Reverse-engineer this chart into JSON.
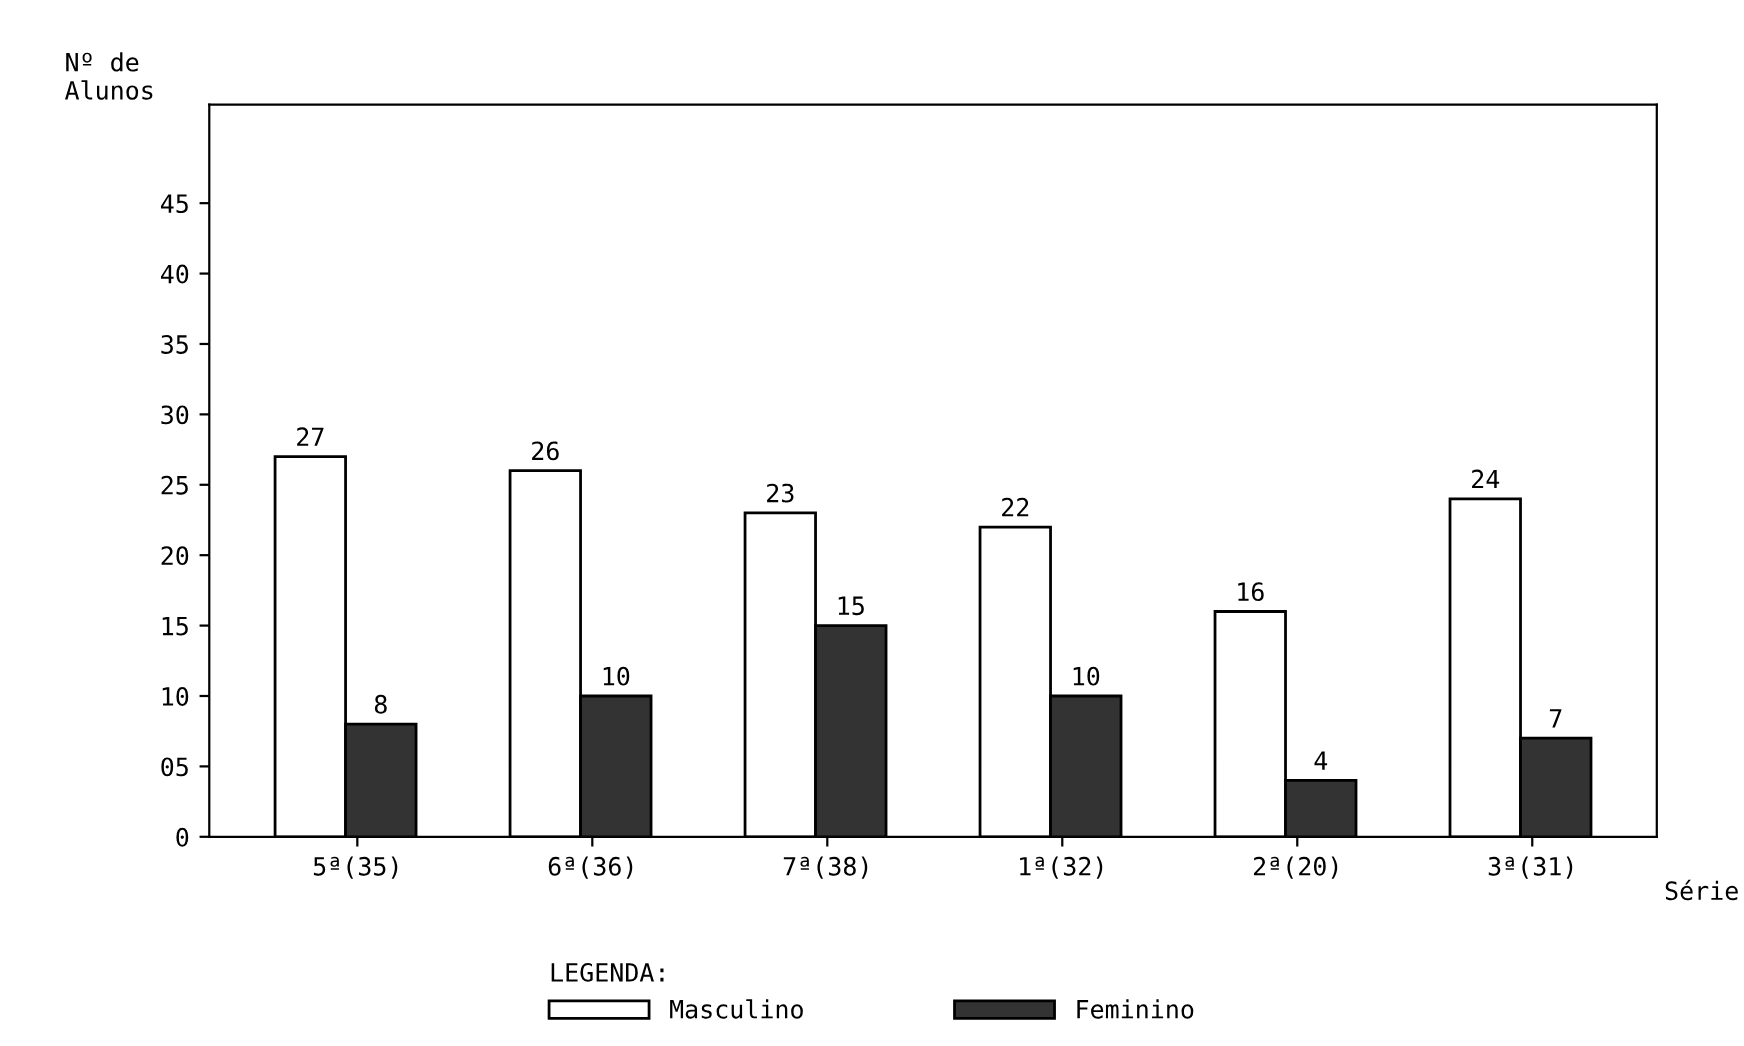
{
  "chart_data": {
    "type": "bar",
    "ylabel": "Nº de\nAlunos",
    "xlabel": "Série",
    "legend_title": "LEGENDA:",
    "categories": [
      "5ª(35)",
      "6ª(36)",
      "7ª(38)",
      "1ª(32)",
      "2ª(20)",
      "3ª(31)"
    ],
    "series": [
      {
        "name": "Masculino",
        "color": "#ffffff",
        "values": [
          27,
          26,
          23,
          22,
          16,
          24
        ]
      },
      {
        "name": "Feminino",
        "color": "#333333",
        "values": [
          8,
          10,
          15,
          10,
          4,
          7
        ]
      }
    ],
    "ylim": [
      0,
      52
    ],
    "yticks": [
      0,
      {
        "value": 5,
        "label": "05"
      },
      10,
      15,
      20,
      25,
      30,
      35,
      40,
      45
    ],
    "data_labels": true,
    "grid": false,
    "legend": "bottom"
  }
}
